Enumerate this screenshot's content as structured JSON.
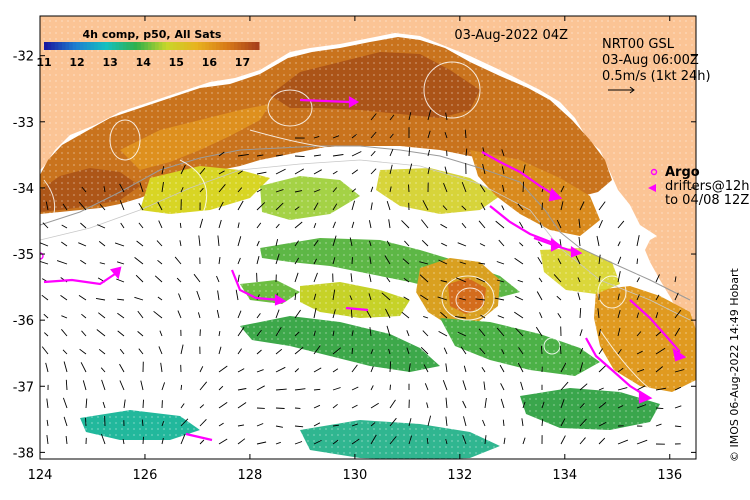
{
  "map": {
    "date_title": "03-Aug-2022 04Z",
    "product": "NRT00 GSL",
    "current_time": "03-Aug 06:00Z",
    "scale_label": "0.5m/s (1kt 24h)",
    "colorbar": {
      "title": "4h comp, p50, All Sats",
      "ticks": [
        "11",
        "12",
        "13",
        "14",
        "15",
        "16",
        "17"
      ],
      "colors": [
        "#1a1aa0",
        "#1f7fd0",
        "#14c0c0",
        "#2fb04a",
        "#c8d62a",
        "#e8b21e",
        "#d87a18",
        "#a8401a"
      ]
    },
    "legend": {
      "argo_label": "Argo",
      "drifters_label": "drifters@12h",
      "drifters_to": "to 04/08 12Z",
      "argo_color": "#ff00ff",
      "drifter_color": "#ff00ff"
    },
    "lat_ticks": [
      "-32",
      "-33",
      "-34",
      "-35",
      "-36",
      "-37",
      "-38"
    ],
    "lon_ticks": [
      "124",
      "126",
      "128",
      "130",
      "132",
      "134",
      "136"
    ],
    "copyright": "© IMOS 06-Aug-2022 14:49 Hobart",
    "land_color": "#fbc495",
    "sst_palette": {
      "warm": "#c8701c",
      "warm_dark": "#a54e18",
      "orange": "#e3961f",
      "yellow": "#d9d524",
      "green": "#3aa94a",
      "teal": "#20b8a8"
    },
    "chart_data": {
      "type": "heatmap",
      "xlabel": "",
      "ylabel": "",
      "xlim": [
        124,
        136.5
      ],
      "ylim": [
        -38.1,
        -31.4
      ],
      "x_ticks": [
        124,
        126,
        128,
        130,
        132,
        134,
        136
      ],
      "y_ticks": [
        -32,
        -33,
        -34,
        -35,
        -36,
        -37,
        -38
      ],
      "colorbar_range": [
        11,
        17.5
      ],
      "title": "03-Aug-2022 04Z"
    }
  }
}
